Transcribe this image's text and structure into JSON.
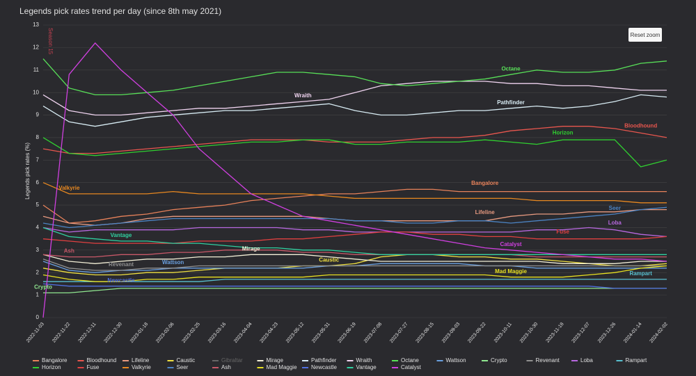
{
  "chart_data": {
    "type": "line",
    "title": "Legends pick rates trend per day (since 8th may 2021)",
    "y_label": "Legends pick rates (%)",
    "annotation": "Season 15",
    "reset_button": "Reset zoom",
    "ylim": [
      0,
      13
    ],
    "yticks": [
      0,
      1,
      2,
      3,
      4,
      5,
      6,
      7,
      8,
      9,
      10,
      11,
      12,
      13
    ],
    "grid": true,
    "categories": [
      "2022-11-03",
      "2022-11-22",
      "2022-12-11",
      "2022-12-30",
      "2023-01-18",
      "2023-02-06",
      "2023-02-25",
      "2023-03-16",
      "2023-04-04",
      "2023-04-23",
      "2023-05-12",
      "2023-05-31",
      "2023-06-19",
      "2023-07-08",
      "2023-07-27",
      "2023-08-15",
      "2023-09-03",
      "2023-09-22",
      "2023-10-11",
      "2023-10-30",
      "2023-11-18",
      "2023-12-07",
      "2023-12-26",
      "2024-01-14",
      "2024-02-02"
    ],
    "series": [
      {
        "name": "Bangalore",
        "color": "#e8825a",
        "values": [
          5.0,
          4.2,
          4.3,
          4.5,
          4.6,
          4.8,
          4.9,
          5.0,
          5.2,
          5.3,
          5.4,
          5.5,
          5.5,
          5.6,
          5.7,
          5.7,
          5.6,
          5.6,
          5.6,
          5.6,
          5.6,
          5.6,
          5.6,
          5.6,
          5.6
        ]
      },
      {
        "name": "Bloodhound",
        "color": "#e8564e",
        "values": [
          7.5,
          7.3,
          7.3,
          7.4,
          7.5,
          7.6,
          7.7,
          7.8,
          7.9,
          7.9,
          7.9,
          7.8,
          7.8,
          7.8,
          7.9,
          8.0,
          8.0,
          8.1,
          8.3,
          8.4,
          8.5,
          8.5,
          8.4,
          8.2,
          8.0
        ]
      },
      {
        "name": "Lifeline",
        "color": "#e89a80",
        "values": [
          4.5,
          4.2,
          4.1,
          4.2,
          4.4,
          4.5,
          4.5,
          4.5,
          4.5,
          4.5,
          4.5,
          4.4,
          4.3,
          4.3,
          4.3,
          4.3,
          4.3,
          4.3,
          4.5,
          4.6,
          4.6,
          4.7,
          4.7,
          4.8,
          4.8
        ]
      },
      {
        "name": "Caustic",
        "color": "#f0e040",
        "values": [
          2.2,
          2.0,
          1.9,
          1.9,
          2.0,
          2.0,
          2.1,
          2.2,
          2.2,
          2.2,
          2.3,
          2.3,
          2.4,
          2.7,
          2.8,
          2.8,
          2.7,
          2.7,
          2.6,
          2.6,
          2.5,
          2.4,
          2.3,
          2.3,
          2.4
        ]
      },
      {
        "name": "Gibraltar",
        "color": "#555555",
        "hidden": true
      },
      {
        "name": "Mirage",
        "color": "#f4f0d8",
        "values": [
          2.8,
          2.5,
          2.4,
          2.5,
          2.6,
          2.6,
          2.7,
          2.7,
          2.8,
          2.8,
          2.8,
          2.7,
          2.6,
          2.5,
          2.5,
          2.5,
          2.5,
          2.5,
          2.5,
          2.5,
          2.4,
          2.4,
          2.4,
          2.5,
          2.5
        ]
      },
      {
        "name": "Pathfinder",
        "color": "#d8ecf4",
        "values": [
          9.4,
          8.7,
          8.5,
          8.7,
          8.9,
          9.0,
          9.1,
          9.2,
          9.2,
          9.3,
          9.4,
          9.5,
          9.2,
          9.0,
          9.0,
          9.1,
          9.2,
          9.2,
          9.3,
          9.4,
          9.3,
          9.4,
          9.6,
          9.9,
          9.8
        ]
      },
      {
        "name": "Wraith",
        "color": "#f0d4f0",
        "values": [
          9.9,
          9.2,
          9.0,
          9.0,
          9.1,
          9.2,
          9.3,
          9.3,
          9.4,
          9.5,
          9.6,
          9.7,
          10.0,
          10.3,
          10.4,
          10.5,
          10.5,
          10.5,
          10.4,
          10.4,
          10.3,
          10.3,
          10.2,
          10.1,
          10.1
        ]
      },
      {
        "name": "Octane",
        "color": "#58e058",
        "values": [
          11.5,
          10.2,
          9.9,
          9.9,
          10.0,
          10.1,
          10.3,
          10.5,
          10.7,
          10.9,
          10.9,
          10.8,
          10.7,
          10.4,
          10.3,
          10.4,
          10.5,
          10.6,
          10.8,
          11.0,
          10.9,
          10.9,
          11.0,
          11.3,
          11.4
        ]
      },
      {
        "name": "Wattson",
        "color": "#6aa0e0",
        "values": [
          2.5,
          2.1,
          2.0,
          2.1,
          2.1,
          2.2,
          2.2,
          2.2,
          2.2,
          2.2,
          2.2,
          2.3,
          2.3,
          2.4,
          2.4,
          2.4,
          2.4,
          2.3,
          2.3,
          2.2,
          2.2,
          2.2,
          2.2,
          2.2,
          2.2
        ]
      },
      {
        "name": "Crypto",
        "color": "#90e890",
        "values": [
          1.1,
          1.1,
          1.2,
          1.3,
          1.3,
          1.3,
          1.3,
          1.3,
          1.3,
          1.3,
          1.3,
          1.3,
          1.3,
          1.3,
          1.3,
          1.3,
          1.3,
          1.3,
          1.3,
          1.3,
          1.3,
          1.3,
          1.3,
          1.3,
          1.3
        ]
      },
      {
        "name": "Revenant",
        "color": "#909090",
        "values": [
          2.6,
          2.2,
          2.1,
          2.1,
          2.2,
          2.2,
          2.3,
          2.3,
          2.3,
          2.3,
          2.3,
          2.3,
          2.3,
          2.3,
          2.3,
          2.3,
          2.3,
          2.3,
          2.3,
          2.3,
          2.3,
          2.3,
          2.3,
          2.3,
          2.3
        ]
      },
      {
        "name": "Loba",
        "color": "#b868e0",
        "values": [
          4.0,
          3.8,
          3.9,
          3.9,
          3.9,
          3.9,
          4.0,
          4.0,
          4.0,
          4.0,
          3.9,
          3.9,
          3.8,
          3.8,
          3.8,
          3.8,
          3.8,
          3.8,
          3.8,
          3.9,
          3.9,
          4.0,
          3.9,
          3.7,
          3.6
        ]
      },
      {
        "name": "Rampart",
        "color": "#58c0d0",
        "values": [
          1.6,
          1.6,
          1.6,
          1.6,
          1.6,
          1.6,
          1.6,
          1.7,
          1.7,
          1.7,
          1.7,
          1.7,
          1.7,
          1.7,
          1.7,
          1.7,
          1.7,
          1.7,
          1.7,
          1.7,
          1.7,
          1.7,
          1.7,
          1.7,
          1.7
        ]
      },
      {
        "name": "Horizon",
        "color": "#30d030",
        "values": [
          8.0,
          7.3,
          7.2,
          7.3,
          7.4,
          7.5,
          7.6,
          7.7,
          7.8,
          7.8,
          7.9,
          7.9,
          7.7,
          7.7,
          7.8,
          7.8,
          7.8,
          7.9,
          7.8,
          7.7,
          7.9,
          7.9,
          7.9,
          6.7,
          7.0
        ]
      },
      {
        "name": "Fuse",
        "color": "#e04040",
        "values": [
          3.5,
          3.4,
          3.3,
          3.3,
          3.3,
          3.3,
          3.4,
          3.4,
          3.4,
          3.5,
          3.5,
          3.6,
          3.7,
          3.8,
          3.8,
          3.7,
          3.7,
          3.6,
          3.6,
          3.5,
          3.5,
          3.5,
          3.5,
          3.5,
          3.6
        ]
      },
      {
        "name": "Valkyrie",
        "color": "#e88820",
        "values": [
          6.0,
          5.5,
          5.5,
          5.5,
          5.5,
          5.6,
          5.5,
          5.5,
          5.5,
          5.5,
          5.5,
          5.4,
          5.3,
          5.3,
          5.3,
          5.3,
          5.3,
          5.3,
          5.3,
          5.2,
          5.2,
          5.2,
          5.2,
          5.1,
          5.1
        ]
      },
      {
        "name": "Seer",
        "color": "#4c84c4",
        "values": [
          4.2,
          4.0,
          4.1,
          4.2,
          4.3,
          4.4,
          4.4,
          4.4,
          4.4,
          4.4,
          4.4,
          4.4,
          4.3,
          4.3,
          4.2,
          4.2,
          4.3,
          4.3,
          4.2,
          4.3,
          4.4,
          4.5,
          4.6,
          4.8,
          4.9
        ]
      },
      {
        "name": "Ash",
        "color": "#c85868",
        "values": [
          2.8,
          2.7,
          2.7,
          2.8,
          2.8,
          2.9,
          2.9,
          3.0,
          3.0,
          3.0,
          2.9,
          2.9,
          2.8,
          2.8,
          2.8,
          2.8,
          2.8,
          2.8,
          2.8,
          2.7,
          2.7,
          2.7,
          2.7,
          2.7,
          2.7
        ]
      },
      {
        "name": "Mad Maggie",
        "color": "#e8e020",
        "values": [
          1.9,
          1.7,
          1.6,
          1.6,
          1.7,
          1.7,
          1.8,
          1.8,
          1.8,
          1.8,
          1.8,
          1.9,
          1.9,
          1.9,
          1.9,
          1.9,
          1.9,
          1.9,
          1.8,
          1.8,
          1.8,
          1.9,
          2.0,
          2.2,
          2.3
        ]
      },
      {
        "name": "Newcastle",
        "color": "#5070e0",
        "values": [
          1.5,
          1.4,
          1.4,
          1.4,
          1.4,
          1.4,
          1.4,
          1.4,
          1.4,
          1.4,
          1.4,
          1.4,
          1.4,
          1.4,
          1.4,
          1.4,
          1.4,
          1.4,
          1.4,
          1.4,
          1.4,
          1.4,
          1.3,
          1.3,
          1.3
        ]
      },
      {
        "name": "Vantage",
        "color": "#30d0a0",
        "values": [
          4.0,
          3.6,
          3.5,
          3.4,
          3.4,
          3.3,
          3.3,
          3.2,
          3.1,
          3.1,
          3.0,
          3.0,
          2.9,
          2.8,
          2.8,
          2.8,
          2.8,
          2.8,
          2.8,
          2.8,
          2.8,
          2.8,
          2.8,
          2.8,
          2.8
        ]
      },
      {
        "name": "Catalyst",
        "color": "#d040e0",
        "values": [
          0,
          10.8,
          12.2,
          11.0,
          10.0,
          9.0,
          7.5,
          6.5,
          5.5,
          5.0,
          4.5,
          4.3,
          4.1,
          3.9,
          3.7,
          3.5,
          3.3,
          3.1,
          3.0,
          2.9,
          2.8,
          2.7,
          2.6,
          2.6,
          2.5
        ]
      }
    ]
  }
}
